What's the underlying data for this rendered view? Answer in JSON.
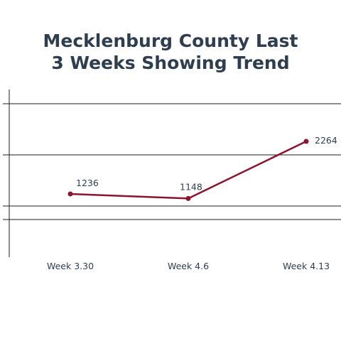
{
  "chart_data": {
    "type": "line",
    "title_lines": [
      "Mecklenburg County Last",
      "3 Weeks Showing Trend"
    ],
    "categories": [
      "Week 3.30",
      "Week 4.6",
      "Week 4.13"
    ],
    "series": [
      {
        "values": [
          1236,
          1148,
          2264
        ],
        "color": "#8b1530"
      }
    ],
    "data_labels": [
      "1236",
      "1148",
      "2264"
    ],
    "ylim": [
      0,
      3000
    ],
    "grid": true,
    "xlabel": "",
    "ylabel": ""
  }
}
